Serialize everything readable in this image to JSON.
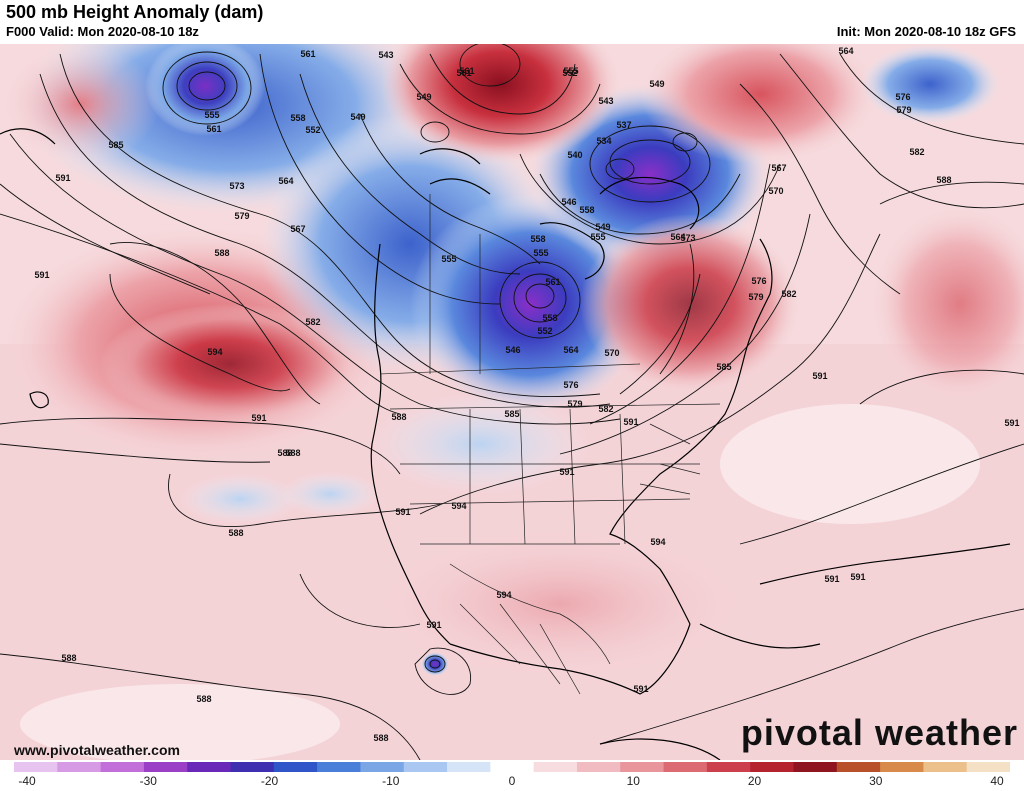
{
  "header": {
    "title": "500 mb Height Anomaly (dam)",
    "valid": "F000 Valid: Mon 2020-08-10 18z",
    "init": "Init: Mon 2020-08-10 18z GFS"
  },
  "footer": {
    "site": "www.pivotalweather.com",
    "brand": "pivotal weather"
  },
  "colorbar": {
    "ticks": [
      "-40",
      "-30",
      "-20",
      "-10",
      "0",
      "10",
      "20",
      "30",
      "40"
    ],
    "colors": [
      "#e7c3ef",
      "#d79be6",
      "#c26fd9",
      "#9b3fc7",
      "#6a28b8",
      "#3d2fb0",
      "#2f55c8",
      "#4a7fd9",
      "#7aa6e6",
      "#a9c7f0",
      "#d6e4f7",
      "#ffffff",
      "#f7dde0",
      "#f1bcc1",
      "#e8959c",
      "#db6a73",
      "#cc3f4c",
      "#b5232f",
      "#8f1621",
      "#b8502a",
      "#d88a4a",
      "#ebc08a",
      "#f3e0c5"
    ]
  },
  "contour_labels": [
    "561",
    "543",
    "561",
    "555",
    "561",
    "585",
    "591",
    "573",
    "579",
    "588",
    "591",
    "594",
    "582",
    "591",
    "588",
    "549",
    "558",
    "552",
    "549",
    "564",
    "567",
    "555",
    "558",
    "555",
    "561",
    "558",
    "552",
    "546",
    "564",
    "570",
    "576",
    "579",
    "585",
    "582",
    "588",
    "591",
    "594",
    "594",
    "594",
    "591",
    "591",
    "588",
    "588",
    "588",
    "588",
    "588",
    "591",
    "591",
    "591",
    "591",
    "561",
    "555",
    "552",
    "549",
    "543",
    "537",
    "534",
    "540",
    "546",
    "549",
    "555",
    "558",
    "564",
    "567",
    "570",
    "573",
    "576",
    "579",
    "582",
    "585",
    "564",
    "576",
    "579",
    "582",
    "588",
    "591",
    "591"
  ]
}
